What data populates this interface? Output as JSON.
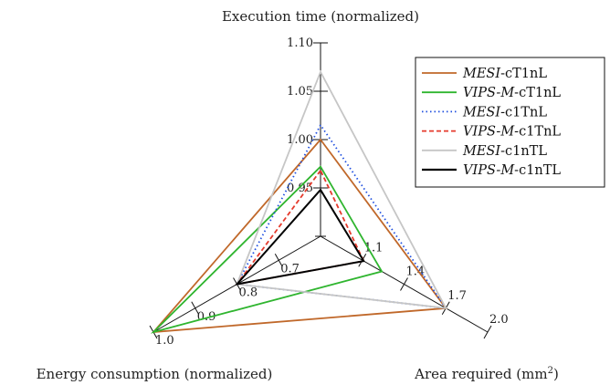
{
  "chart_data": {
    "type": "radar",
    "axes": [
      {
        "id": "exec",
        "label": "Execution time (normalized)",
        "range": [
          0.9,
          1.1
        ],
        "ticks": [
          {
            "value": 0.95,
            "label": "0.95"
          },
          {
            "value": 1.0,
            "label": "1.00"
          },
          {
            "value": 1.05,
            "label": "1.05"
          },
          {
            "value": 1.1,
            "label": "1.10"
          }
        ]
      },
      {
        "id": "energy",
        "label": "Energy consumption (normalized)",
        "range": [
          0.6,
          1.0
        ],
        "ticks": [
          {
            "value": 0.7,
            "label": "0.7"
          },
          {
            "value": 0.8,
            "label": "0.8"
          },
          {
            "value": 0.9,
            "label": "0.9"
          },
          {
            "value": 1.0,
            "label": "1.0"
          }
        ]
      },
      {
        "id": "area",
        "label": "Area required (mm",
        "label_sup": "2",
        "label_end": ")",
        "range": [
          0.8,
          2.0
        ],
        "ticks": [
          {
            "value": 1.1,
            "label": "1.1"
          },
          {
            "value": 1.4,
            "label": "1.4"
          },
          {
            "value": 1.7,
            "label": "1.7"
          },
          {
            "value": 2.0,
            "label": "2.0"
          }
        ]
      }
    ],
    "series": [
      {
        "name_italic": "MESI",
        "name_rest": "-cT1nL",
        "color": "#c0682a",
        "dash": "",
        "values": [
          1.0,
          1.0,
          1.7
        ]
      },
      {
        "name_italic": "VIPS-M",
        "name_rest": "-cT1nL",
        "color": "#2fb52f",
        "dash": "",
        "values": [
          0.972,
          1.0,
          1.24
        ]
      },
      {
        "name_italic": "MESI",
        "name_rest": "-c1TnL",
        "color": "#1f4fdf",
        "dash": "1.5,3",
        "values": [
          1.015,
          0.8,
          1.7
        ]
      },
      {
        "name_italic": "VIPS-M",
        "name_rest": "-c1TnL",
        "color": "#e53a2c",
        "dash": "5,3",
        "values": [
          0.968,
          0.8,
          1.11
        ]
      },
      {
        "name_italic": "MESI",
        "name_rest": "-c1nTL",
        "color": "#c6c6c6",
        "dash": "",
        "values": [
          1.07,
          0.8,
          1.7
        ]
      },
      {
        "name_italic": "VIPS-M",
        "name_rest": "-c1nTL",
        "color": "#000000",
        "dash": "",
        "values": [
          0.948,
          0.8,
          1.11
        ]
      }
    ],
    "legend_position": "top-right"
  }
}
